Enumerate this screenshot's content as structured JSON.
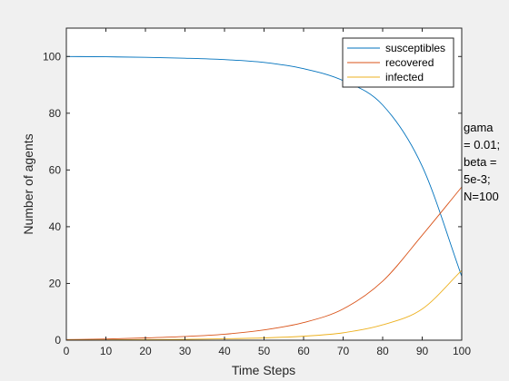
{
  "chart_data": {
    "type": "line",
    "title": "",
    "xlabel": "Time Steps",
    "ylabel": "Number of agents",
    "xlim": [
      0,
      100
    ],
    "ylim": [
      0,
      110
    ],
    "xticks": [
      0,
      10,
      20,
      30,
      40,
      50,
      60,
      70,
      80,
      90,
      100
    ],
    "yticks": [
      0,
      20,
      40,
      60,
      80,
      100
    ],
    "grid": false,
    "legend_position": "top-right",
    "x": [
      0,
      10,
      20,
      30,
      40,
      50,
      60,
      70,
      80,
      90,
      100
    ],
    "series": [
      {
        "name": "susceptibles",
        "color": "#0072bd",
        "values": [
          100,
          99.9,
          99.7,
          99.4,
          98.9,
          97.9,
          95.7,
          91.5,
          82.9,
          61.3,
          22.5
        ]
      },
      {
        "name": "recovered",
        "color": "#d95319",
        "values": [
          0.2,
          0.4,
          0.8,
          1.3,
          2.1,
          3.6,
          6.2,
          11.0,
          20.8,
          37.0,
          54.0
        ]
      },
      {
        "name": "infected",
        "color": "#edb120",
        "values": [
          0.1,
          0.1,
          0.2,
          0.3,
          0.5,
          0.8,
          1.4,
          2.6,
          5.4,
          11.0,
          24.6
        ]
      }
    ]
  },
  "annotation": {
    "lines": [
      "gama",
      "= 0.01;",
      "beta =",
      "5e-3;",
      "N=100"
    ]
  }
}
